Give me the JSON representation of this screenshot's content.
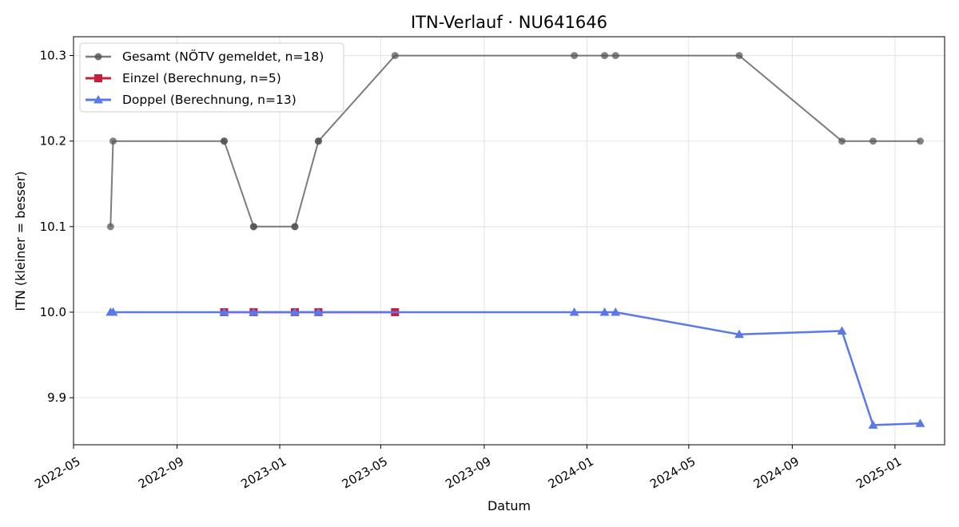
{
  "chart_data": {
    "type": "line",
    "title": "ITN-Verlauf · NU641646",
    "xlabel": "Datum",
    "ylabel": "ITN  (kleiner = besser)",
    "xlim": [
      "2022-05-01",
      "2025-03-01"
    ],
    "ylim": [
      9.845,
      10.322
    ],
    "yticks": [
      9.9,
      10.0,
      10.1,
      10.2,
      10.3
    ],
    "ytick_labels": [
      "9.9",
      "10.0",
      "10.1",
      "10.2",
      "10.3"
    ],
    "xticks": [
      "2022-05-01",
      "2022-09-01",
      "2023-01-01",
      "2023-05-01",
      "2023-09-01",
      "2024-01-01",
      "2024-05-01",
      "2024-09-01",
      "2025-01-01"
    ],
    "xtick_labels": [
      "2022-05",
      "2022-09",
      "2023-01",
      "2023-05",
      "2023-09",
      "2024-01",
      "2024-05",
      "2024-09",
      "2025-01"
    ],
    "grid": true,
    "legend_position": "top-left",
    "series": [
      {
        "name": "Gesamt (NÖTV gemeldet, n=18)",
        "color": "#505050",
        "marker": "circle",
        "points": [
          {
            "x": "2022-06-14",
            "y": 10.1
          },
          {
            "x": "2022-06-17",
            "y": 10.2
          },
          {
            "x": "2022-10-27",
            "y": 10.2
          },
          {
            "x": "2022-10-27",
            "y": 10.2
          },
          {
            "x": "2022-12-01",
            "y": 10.1
          },
          {
            "x": "2022-12-01",
            "y": 10.1
          },
          {
            "x": "2023-01-19",
            "y": 10.1
          },
          {
            "x": "2023-01-19",
            "y": 10.1
          },
          {
            "x": "2023-02-16",
            "y": 10.2
          },
          {
            "x": "2023-02-16",
            "y": 10.2
          },
          {
            "x": "2023-05-18",
            "y": 10.3
          },
          {
            "x": "2023-12-17",
            "y": 10.3
          },
          {
            "x": "2024-01-22",
            "y": 10.3
          },
          {
            "x": "2024-02-04",
            "y": 10.3
          },
          {
            "x": "2024-06-30",
            "y": 10.3
          },
          {
            "x": "2024-10-30",
            "y": 10.2
          },
          {
            "x": "2024-12-06",
            "y": 10.2
          },
          {
            "x": "2025-01-31",
            "y": 10.2
          }
        ]
      },
      {
        "name": "Einzel (Berechnung, n=5)",
        "color": "#c8203c",
        "marker": "square",
        "points": [
          {
            "x": "2022-10-27",
            "y": 10.0
          },
          {
            "x": "2022-12-01",
            "y": 10.0
          },
          {
            "x": "2023-01-19",
            "y": 10.0
          },
          {
            "x": "2023-02-16",
            "y": 10.0
          },
          {
            "x": "2023-05-18",
            "y": 10.0
          }
        ]
      },
      {
        "name": "Doppel (Berechnung, n=13)",
        "color": "#5a78e8",
        "marker": "triangle",
        "points": [
          {
            "x": "2022-06-14",
            "y": 10.0
          },
          {
            "x": "2022-06-17",
            "y": 10.0
          },
          {
            "x": "2022-10-27",
            "y": 10.0
          },
          {
            "x": "2022-12-01",
            "y": 10.0
          },
          {
            "x": "2023-01-19",
            "y": 10.0
          },
          {
            "x": "2023-02-16",
            "y": 10.0
          },
          {
            "x": "2023-12-17",
            "y": 10.0
          },
          {
            "x": "2024-01-22",
            "y": 10.0
          },
          {
            "x": "2024-02-04",
            "y": 10.0
          },
          {
            "x": "2024-06-30",
            "y": 9.974
          },
          {
            "x": "2024-10-30",
            "y": 9.978
          },
          {
            "x": "2024-12-06",
            "y": 9.868
          },
          {
            "x": "2025-01-31",
            "y": 9.87
          }
        ]
      }
    ]
  }
}
